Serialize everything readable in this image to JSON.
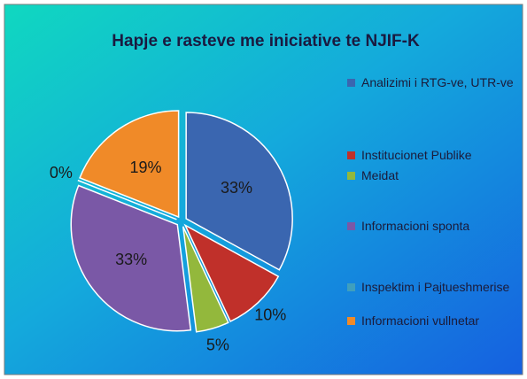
{
  "chart_data": {
    "type": "pie",
    "title": "Hapje e rasteve me iniciative te NJIF-K",
    "categories": [
      "Analizimi i RTG-ve, UTR-ve",
      "Institucionet Publike",
      "Meidat",
      "Informacioni sponta",
      "Inspektim i Pajtueshmerise",
      "Informacioni vullnetar"
    ],
    "values": [
      33,
      10,
      5,
      33,
      0,
      19
    ],
    "value_labels": [
      "33%",
      "10%",
      "5%",
      "33%",
      "0%",
      "19%"
    ],
    "colors": [
      "#3a66b0",
      "#c0302a",
      "#93b83c",
      "#7a58a6",
      "#3f9fbd",
      "#f08a28"
    ],
    "legend": "right"
  }
}
